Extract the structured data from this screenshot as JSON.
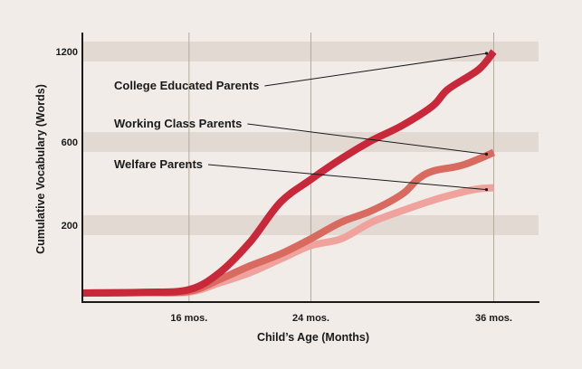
{
  "chart_data": {
    "type": "line",
    "title": "",
    "xlabel": "Child’s Age (Months)",
    "ylabel": "Cumulative Vocabulary (Words)",
    "xlim": [
      9,
      39
    ],
    "y_axis_note": "y axis is non-linear: labeled ticks at 200, 600, 1200; shaded bands at each labeled tick",
    "x_ticks": [
      {
        "value": 16,
        "label": "16 mos."
      },
      {
        "value": 24,
        "label": "24 mos."
      },
      {
        "value": 36,
        "label": "36 mos."
      }
    ],
    "y_ticks": [
      {
        "value": 200,
        "label": "200"
      },
      {
        "value": 600,
        "label": "600"
      },
      {
        "value": 1200,
        "label": "1200"
      }
    ],
    "grid": {
      "vertical": true,
      "horizontal_bands": true
    },
    "series": [
      {
        "name": "College Educated Parents",
        "color": "#c8283a",
        "points": [
          [
            9,
            0
          ],
          [
            13,
            2
          ],
          [
            16,
            10
          ],
          [
            18,
            60
          ],
          [
            20,
            150
          ],
          [
            22,
            310
          ],
          [
            24,
            420
          ],
          [
            26,
            520
          ],
          [
            28,
            610
          ],
          [
            30,
            710
          ],
          [
            32,
            840
          ],
          [
            33,
            950
          ],
          [
            35,
            1080
          ],
          [
            36,
            1200
          ]
        ]
      },
      {
        "name": "Working Class Parents",
        "color": "#d86a60",
        "points": [
          [
            9,
            0
          ],
          [
            13,
            2
          ],
          [
            16,
            5
          ],
          [
            18,
            40
          ],
          [
            20,
            80
          ],
          [
            22,
            115
          ],
          [
            24,
            160
          ],
          [
            26,
            215
          ],
          [
            28,
            270
          ],
          [
            30,
            350
          ],
          [
            31,
            420
          ],
          [
            32,
            460
          ],
          [
            34,
            490
          ],
          [
            36,
            550
          ]
        ]
      },
      {
        "name": "Welfare Parents",
        "color": "#f0a39c",
        "points": [
          [
            9,
            0
          ],
          [
            13,
            1
          ],
          [
            16,
            3
          ],
          [
            18,
            30
          ],
          [
            20,
            60
          ],
          [
            22,
            100
          ],
          [
            24,
            140
          ],
          [
            26,
            160
          ],
          [
            28,
            215
          ],
          [
            30,
            270
          ],
          [
            32,
            320
          ],
          [
            34,
            360
          ],
          [
            35,
            375
          ],
          [
            36,
            380
          ]
        ]
      }
    ],
    "annotations": [
      {
        "text": "College Educated Parents",
        "series": "College Educated Parents"
      },
      {
        "text": "Working Class Parents",
        "series": "Working Class Parents"
      },
      {
        "text": "Welfare Parents",
        "series": "Welfare Parents"
      }
    ],
    "colors": {
      "background": "#f1ece8",
      "band": "#e2d9d3",
      "gridline": "#b5a99a",
      "axis": "#1a1a1a"
    }
  }
}
